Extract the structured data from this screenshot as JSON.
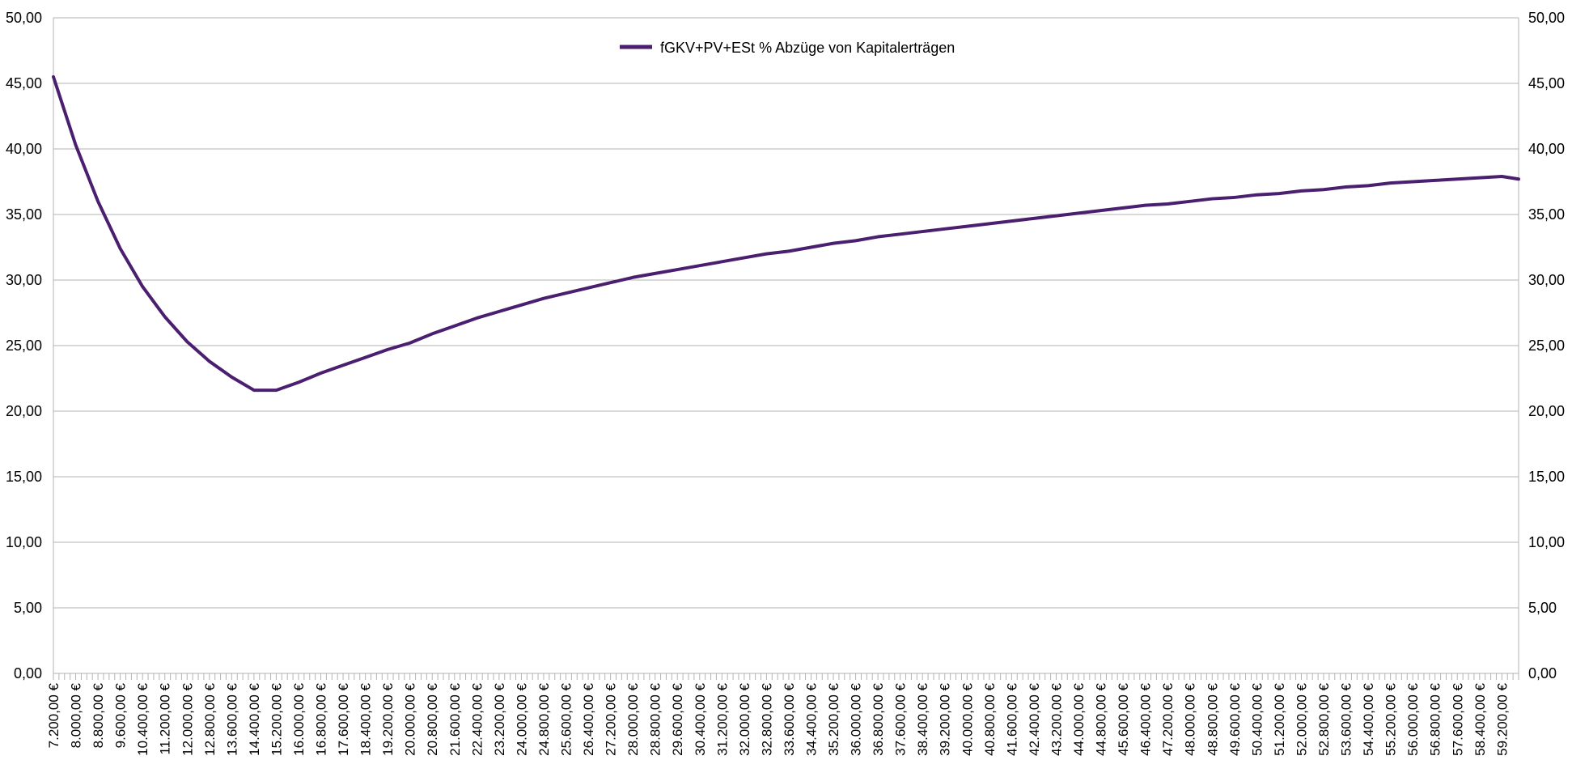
{
  "chart_data": {
    "type": "line",
    "title": "",
    "xlabel": "",
    "ylabel": "",
    "ylim": [
      0,
      50
    ],
    "y_ticks": [
      "0,00",
      "5,00",
      "10,00",
      "15,00",
      "20,00",
      "25,00",
      "30,00",
      "35,00",
      "40,00",
      "45,00",
      "50,00"
    ],
    "y_tick_values": [
      0,
      5,
      10,
      15,
      20,
      25,
      30,
      35,
      40,
      45,
      50
    ],
    "secondary_y_axis": true,
    "grid": "horizontal",
    "legend_position": "top-center",
    "x_range": [
      7200,
      59800
    ],
    "x_step": 200,
    "x_label_step": 800,
    "x_labels": [
      "7.200,00 €",
      "8.000,00 €",
      "8.800,00 €",
      "9.600,00 €",
      "10.400,00 €",
      "11.200,00 €",
      "12.000,00 €",
      "12.800,00 €",
      "13.600,00 €",
      "14.400,00 €",
      "15.200,00 €",
      "16.000,00 €",
      "16.800,00 €",
      "17.600,00 €",
      "18.400,00 €",
      "19.200,00 €",
      "20.000,00 €",
      "20.800,00 €",
      "21.600,00 €",
      "22.400,00 €",
      "23.200,00 €",
      "24.000,00 €",
      "24.800,00 €",
      "25.600,00 €",
      "26.400,00 €",
      "27.200,00 €",
      "28.000,00 €",
      "28.800,00 €",
      "29.600,00 €",
      "30.400,00 €",
      "31.200,00 €",
      "32.000,00 €",
      "32.800,00 €",
      "33.600,00 €",
      "34.400,00 €",
      "35.200,00 €",
      "36.000,00 €",
      "36.800,00 €",
      "37.600,00 €",
      "38.400,00 €",
      "39.200,00 €",
      "40.000,00 €",
      "40.800,00 €",
      "41.600,00 €",
      "42.400,00 €",
      "43.200,00 €",
      "44.000,00 €",
      "44.800,00 €",
      "45.600,00 €",
      "46.400,00 €",
      "47.200,00 €",
      "48.000,00 €",
      "48.800,00 €",
      "49.600,00 €",
      "50.400,00 €",
      "51.200,00 €",
      "52.000,00 €",
      "52.800,00 €",
      "53.600,00 €",
      "54.400,00 €",
      "55.200,00 €",
      "56.000,00 €",
      "56.800,00 €",
      "57.600,00 €",
      "58.400,00 €",
      "59.200,00 €"
    ],
    "series": [
      {
        "name": "fGKV+PV+ESt % Abzüge von Kapitalerträgen",
        "color": "#4b1f6f",
        "x": [
          7200,
          8000,
          8800,
          9600,
          10400,
          11200,
          12000,
          12800,
          13600,
          14400,
          14800,
          15200,
          15600,
          16000,
          16800,
          17600,
          18400,
          19200,
          20000,
          20800,
          21600,
          22400,
          23200,
          24000,
          24800,
          25600,
          26400,
          27200,
          28000,
          28800,
          29600,
          30400,
          31200,
          32000,
          32800,
          33600,
          34400,
          35200,
          36000,
          36800,
          37600,
          38400,
          39200,
          40000,
          40800,
          41600,
          42400,
          43200,
          44000,
          44800,
          45600,
          46400,
          47200,
          48000,
          48800,
          49600,
          50400,
          51200,
          52000,
          52800,
          53600,
          54400,
          55200,
          56000,
          56800,
          57600,
          58400,
          59200,
          59800
        ],
        "y": [
          45.5,
          40.3,
          36.0,
          32.4,
          29.5,
          27.2,
          25.3,
          23.8,
          22.6,
          21.6,
          21.6,
          21.6,
          21.9,
          22.2,
          22.9,
          23.5,
          24.1,
          24.7,
          25.2,
          25.9,
          26.5,
          27.1,
          27.6,
          28.1,
          28.6,
          29.0,
          29.4,
          29.8,
          30.2,
          30.5,
          30.8,
          31.1,
          31.4,
          31.7,
          32.0,
          32.2,
          32.5,
          32.8,
          33.0,
          33.3,
          33.5,
          33.7,
          33.9,
          34.1,
          34.3,
          34.5,
          34.7,
          34.9,
          35.1,
          35.3,
          35.5,
          35.7,
          35.8,
          36.0,
          36.2,
          36.3,
          36.5,
          36.6,
          36.8,
          36.9,
          37.1,
          37.2,
          37.4,
          37.5,
          37.6,
          37.7,
          37.8,
          37.9,
          37.7
        ]
      }
    ]
  }
}
